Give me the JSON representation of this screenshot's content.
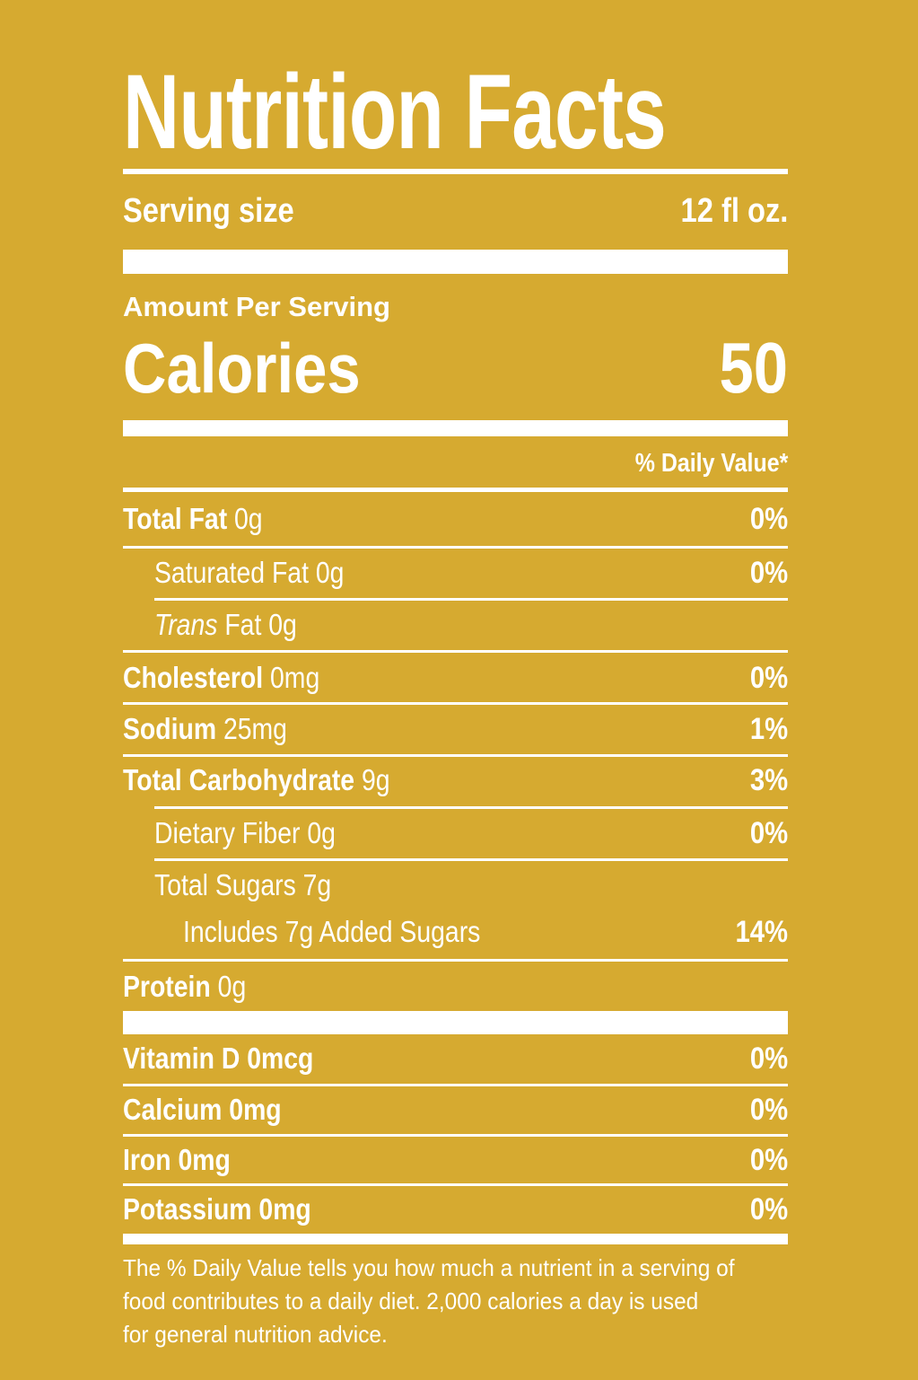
{
  "title": "Nutrition Facts",
  "serving": {
    "label": "Serving size",
    "value": "12 fl oz."
  },
  "amount_per_serving": "Amount Per Serving",
  "calories": {
    "label": "Calories",
    "value": "50"
  },
  "daily_value_header": "% Daily Value*",
  "nutrients": [
    {
      "name": "Total Fat",
      "amount": "0g",
      "dv": "0%"
    },
    {
      "name": "Saturated Fat",
      "amount": "0g",
      "dv": "0%"
    },
    {
      "name_italic": "Trans",
      "name": "Fat",
      "amount": "0g",
      "dv": ""
    },
    {
      "name": "Cholesterol",
      "amount": "0mg",
      "dv": "0%"
    },
    {
      "name": "Sodium",
      "amount": "25mg",
      "dv": "1%"
    },
    {
      "name": "Total Carbohydrate",
      "amount": "9g",
      "dv": "3%"
    },
    {
      "name": "Dietary Fiber",
      "amount": "0g",
      "dv": "0%"
    },
    {
      "name": "Total Sugars",
      "amount": "7g",
      "dv": ""
    },
    {
      "text": "Includes 7g Added Sugars",
      "dv": "14%"
    },
    {
      "name": "Protein",
      "amount": "0g",
      "dv": ""
    }
  ],
  "vitamins": [
    {
      "name": "Vitamin D",
      "amount": "0mcg",
      "dv": "0%"
    },
    {
      "name": "Calcium",
      "amount": "0mg",
      "dv": "0%"
    },
    {
      "name": "Iron",
      "amount": "0mg",
      "dv": "0%"
    },
    {
      "name": "Potassium",
      "amount": "0mg",
      "dv": "0%"
    }
  ],
  "footnote": [
    "The % Daily Value tells you how much a nutrient in a serving of",
    "food contributes to a daily diet. 2,000 calories a day is used",
    "for general nutrition advice."
  ],
  "colors": {
    "background": "#d6aa30",
    "text": "#ffffff"
  }
}
